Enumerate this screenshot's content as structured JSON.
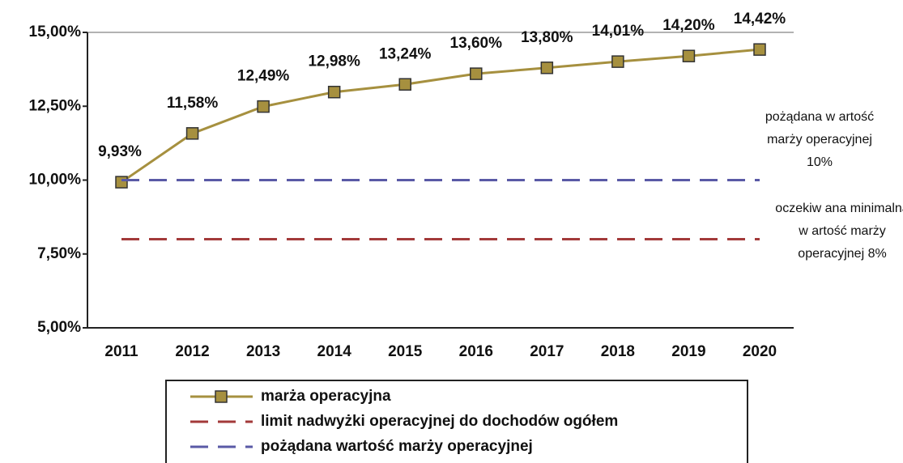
{
  "chart_data": {
    "type": "line",
    "categories": [
      "2011",
      "2012",
      "2013",
      "2014",
      "2015",
      "2016",
      "2017",
      "2018",
      "2019",
      "2020"
    ],
    "series": [
      {
        "name": "marża operacyjna",
        "color": "#a6903f",
        "marker": "square",
        "dash": false,
        "values": [
          9.93,
          11.58,
          12.49,
          12.98,
          13.24,
          13.6,
          13.8,
          14.01,
          14.2,
          14.42
        ],
        "value_labels": [
          "9,93%",
          "11,58%",
          "12,49%",
          "12,98%",
          "13,24%",
          "13,60%",
          "13,80%",
          "14,01%",
          "14,20%",
          "14,42%"
        ]
      },
      {
        "name": "limit nadwyżki operacyjnej do dochodów ogółem",
        "color": "#a33a3a",
        "dash": true,
        "values": [
          8,
          8,
          8,
          8,
          8,
          8,
          8,
          8,
          8,
          8
        ]
      },
      {
        "name": "pożądana wartość marży operacyjnej",
        "color": "#5a5aa6",
        "dash": true,
        "values": [
          10,
          10,
          10,
          10,
          10,
          10,
          10,
          10,
          10,
          10
        ]
      }
    ],
    "ylim": [
      5,
      15
    ],
    "yticks": [
      {
        "value": 5,
        "label": "5,00%"
      },
      {
        "value": 7.5,
        "label": "7,50%"
      },
      {
        "value": 10,
        "label": "10,00%"
      },
      {
        "value": 12.5,
        "label": "12,50%"
      },
      {
        "value": 15,
        "label": "15,00%"
      }
    ],
    "annotations": [
      {
        "lines": [
          "pożądana w artość",
          "marży operacyjnej",
          "10%"
        ]
      },
      {
        "lines": [
          "oczekiw ana minimalna",
          "w artość marży",
          "operacyjnej 8%"
        ]
      }
    ]
  }
}
